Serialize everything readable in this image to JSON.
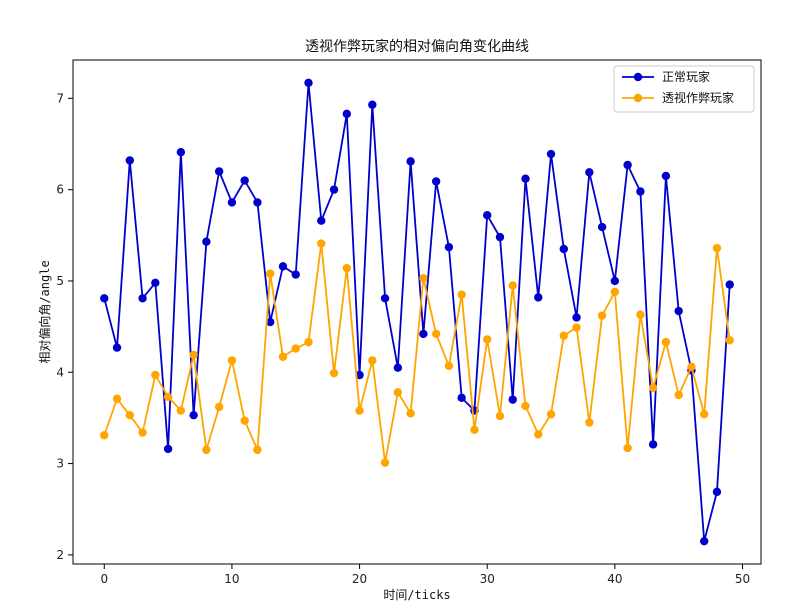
{
  "chart_data": {
    "type": "line",
    "title": "透视作弊玩家的相对偏向角变化曲线",
    "xlabel": "时间/ticks",
    "ylabel": "相对偏向角/angle",
    "xlim": [
      -2.45,
      51.45
    ],
    "ylim": [
      1.9,
      7.42
    ],
    "xticks": [
      0,
      10,
      20,
      30,
      40,
      50
    ],
    "yticks": [
      2,
      3,
      4,
      5,
      6,
      7
    ],
    "grid": false,
    "legend_position": "top-right",
    "x": [
      0,
      1,
      2,
      3,
      4,
      5,
      6,
      7,
      8,
      9,
      10,
      11,
      12,
      13,
      14,
      15,
      16,
      17,
      18,
      19,
      20,
      21,
      22,
      23,
      24,
      25,
      26,
      27,
      28,
      29,
      30,
      31,
      32,
      33,
      34,
      35,
      36,
      37,
      38,
      39,
      40,
      41,
      42,
      43,
      44,
      45,
      46,
      47,
      48,
      49
    ],
    "series": [
      {
        "name": "正常玩家",
        "color": "#0000cc",
        "values": [
          4.81,
          4.27,
          6.32,
          4.81,
          4.98,
          3.16,
          6.41,
          3.53,
          5.43,
          6.2,
          5.86,
          6.1,
          5.86,
          4.55,
          5.16,
          5.07,
          7.17,
          5.66,
          6.0,
          6.83,
          3.97,
          6.93,
          4.81,
          4.05,
          6.31,
          4.42,
          6.09,
          5.37,
          3.72,
          3.58,
          5.72,
          5.48,
          3.7,
          6.12,
          4.82,
          6.39,
          5.35,
          4.6,
          6.19,
          5.59,
          5.0,
          6.27,
          5.98,
          3.21,
          6.15,
          4.67,
          4.02,
          2.15,
          2.69,
          4.96
        ]
      },
      {
        "name": "透视作弊玩家",
        "color": "#ffa500",
        "values": [
          3.31,
          3.71,
          3.53,
          3.34,
          3.97,
          3.73,
          3.58,
          4.19,
          3.15,
          3.62,
          4.13,
          3.47,
          3.15,
          5.08,
          4.17,
          4.26,
          4.33,
          5.41,
          3.99,
          5.14,
          3.58,
          4.13,
          3.01,
          3.78,
          3.55,
          5.03,
          4.42,
          4.07,
          4.85,
          3.37,
          4.36,
          3.52,
          4.95,
          3.63,
          3.32,
          3.54,
          4.4,
          4.49,
          3.45,
          4.62,
          4.88,
          3.17,
          4.63,
          3.83,
          4.33,
          3.75,
          4.06,
          3.54,
          5.36,
          4.35
        ]
      }
    ]
  }
}
